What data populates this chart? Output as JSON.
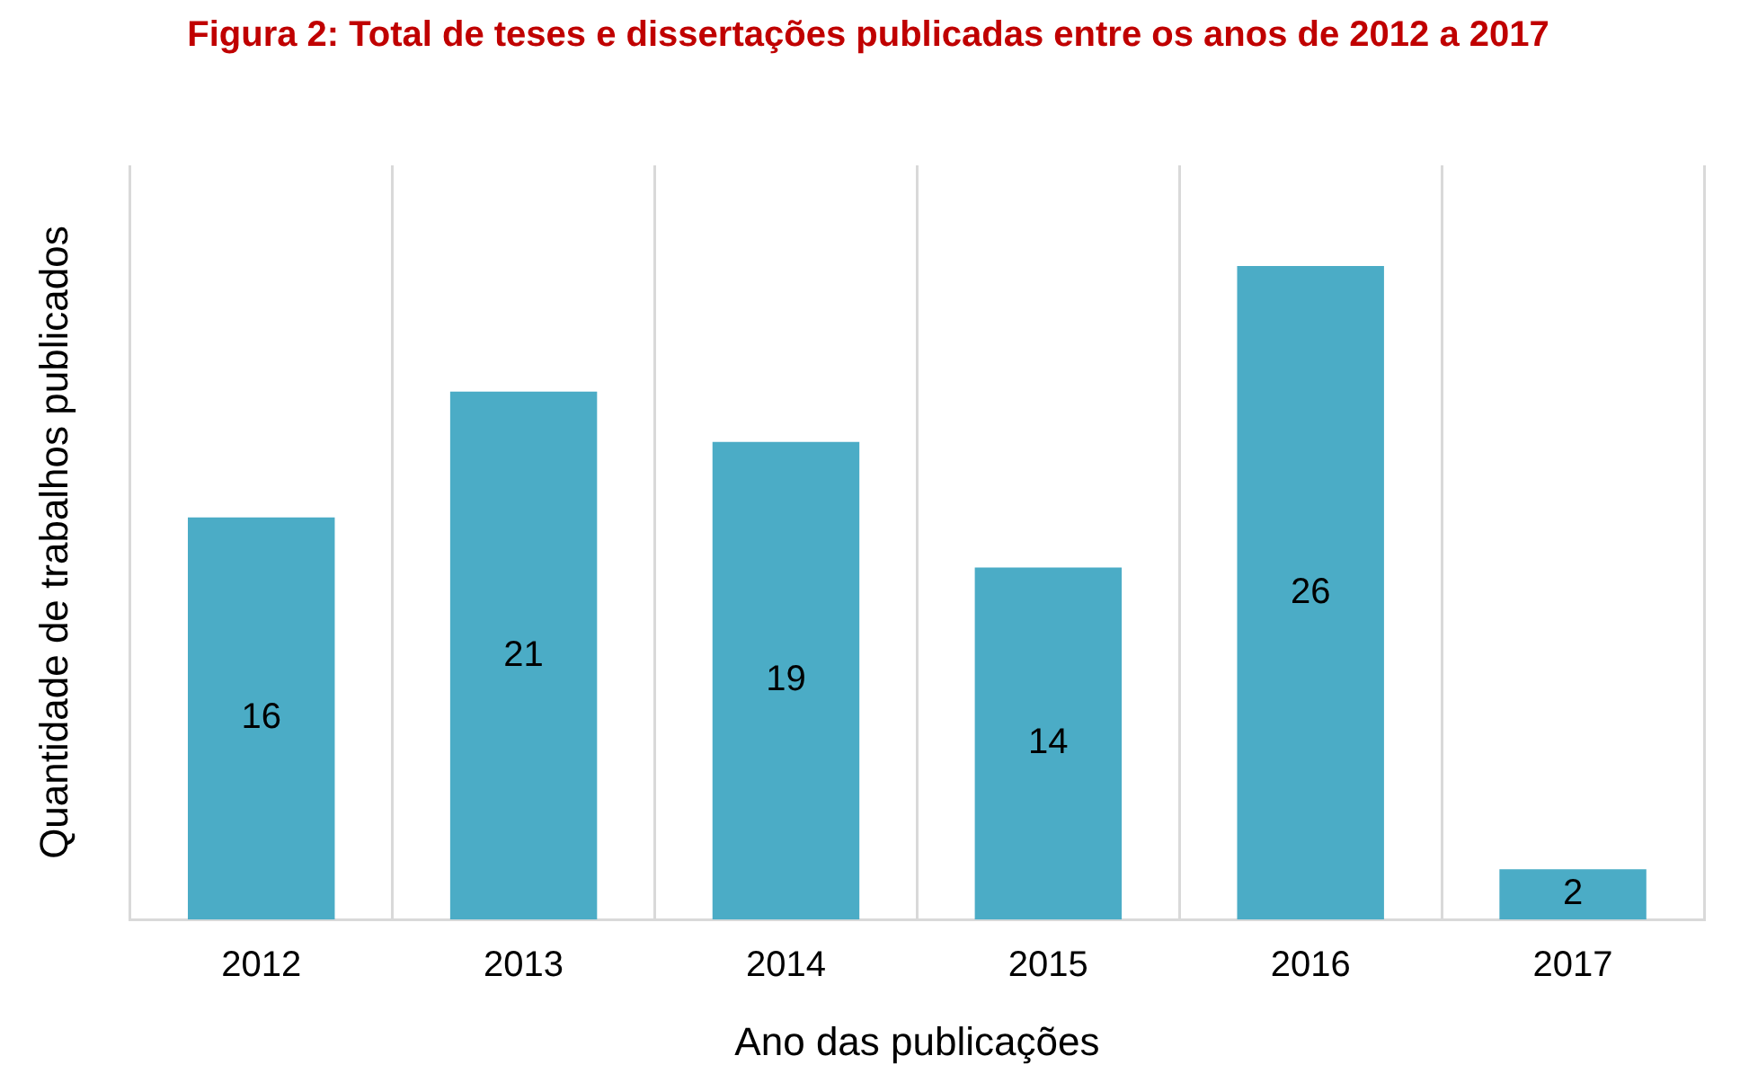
{
  "chart_data": {
    "type": "bar",
    "title": "Figura 2: Total de teses e dissertações publicadas entre os anos de 2012 a 2017",
    "xlabel": "Ano das publicações",
    "ylabel": "Quantidade de trabalhos publicados",
    "categories": [
      "2012",
      "2013",
      "2014",
      "2015",
      "2016",
      "2017"
    ],
    "values": [
      16,
      21,
      19,
      14,
      26,
      2
    ],
    "color": "#4bacc6",
    "data_labels": true,
    "grid": "x",
    "legend": false
  }
}
